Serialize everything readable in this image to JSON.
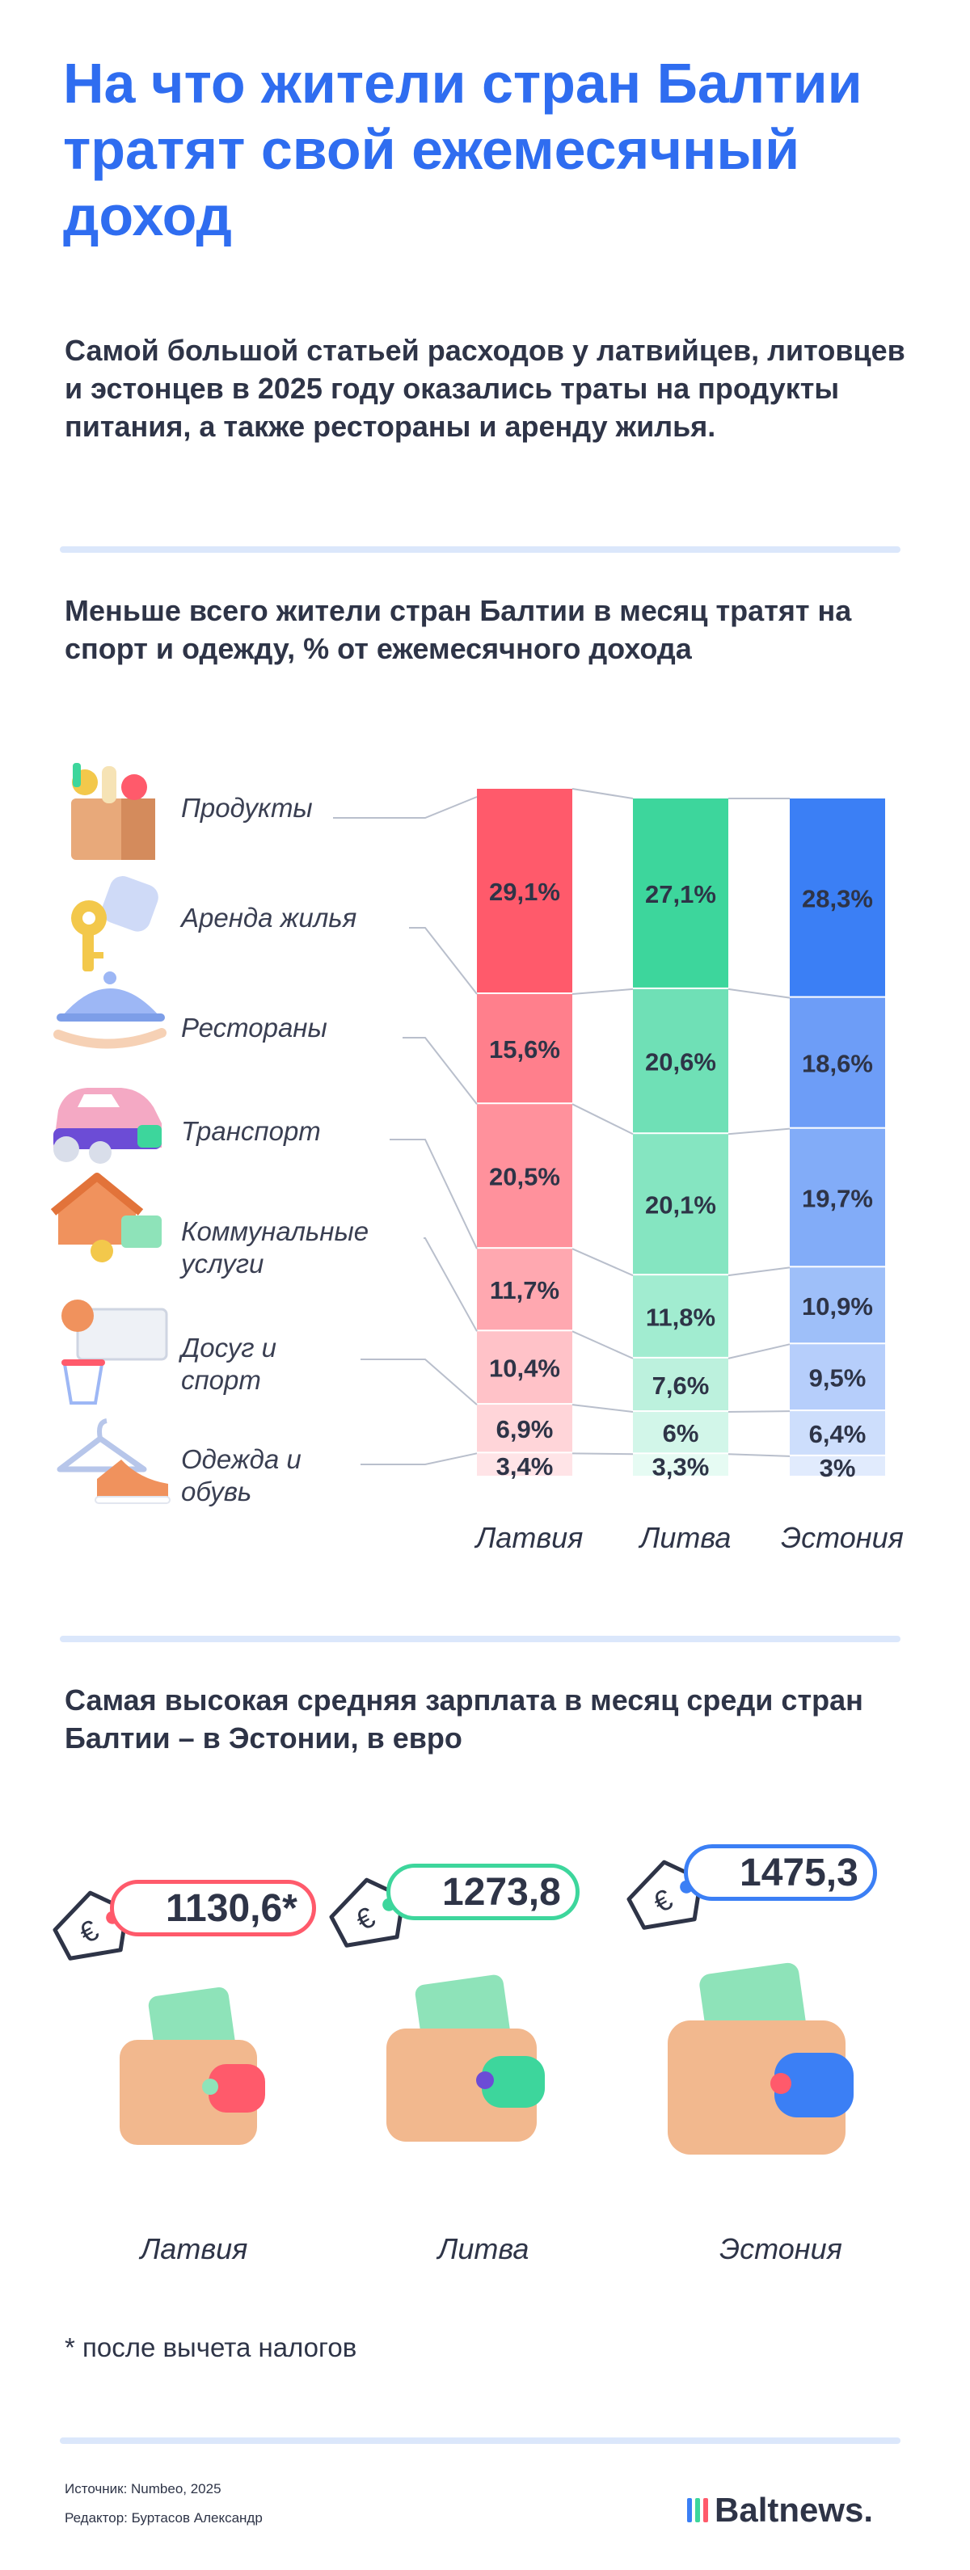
{
  "title": "На что жители стран Балтии тратят свой ежемесячный доход",
  "subtitle": "Самой большой статьей расходов у латвийцев, литовцев и эстонцев в 2025 году оказались траты на продукты питания, а также рестораны и аренду жилья.",
  "section1_title": "Меньше всего жители стран Балтии в месяц тратят на спорт и одежду, % от ежемесячного дохода",
  "section2_title": "Самая высокая средняя зарплата в месяц среди стран Балтии – в Эстонии, в евро",
  "chart_data": [
    {
      "type": "bar",
      "stacked": true,
      "title": "Меньше всего жители стран Балтии в месяц тратят на спорт и одежду, % от ежемесячного дохода",
      "categories": [
        "Латвия",
        "Литва",
        "Эстония"
      ],
      "series": [
        {
          "name": "Продукты",
          "values": [
            29.1,
            27.1,
            28.3
          ],
          "labels": [
            "29,1%",
            "27,1%",
            "28,3%"
          ]
        },
        {
          "name": "Аренда жилья",
          "values": [
            15.6,
            20.6,
            18.6
          ],
          "labels": [
            "15,6%",
            "20,6%",
            "18,6%"
          ]
        },
        {
          "name": "Рестораны",
          "values": [
            20.5,
            20.1,
            19.7
          ],
          "labels": [
            "20,5%",
            "20,1%",
            "19,7%"
          ]
        },
        {
          "name": "Транспорт",
          "values": [
            11.7,
            11.8,
            10.9
          ],
          "labels": [
            "11,7%",
            "11,8%",
            "10,9%"
          ]
        },
        {
          "name": "Коммунальные услуги",
          "values": [
            10.4,
            7.6,
            9.5
          ],
          "labels": [
            "10,4%",
            "7,6%",
            "9,5%"
          ]
        },
        {
          "name": "Досуг и спорт",
          "values": [
            6.9,
            6,
            6.4
          ],
          "labels": [
            "6,9%",
            "6%",
            "6,4%"
          ]
        },
        {
          "name": "Одежда и обувь",
          "values": [
            3.4,
            3.3,
            3
          ],
          "labels": [
            "3,4%",
            "3,3%",
            "3%"
          ]
        }
      ],
      "category_labels": [
        "Продукты",
        "Аренда жилья",
        "Рестораны",
        "Транспорт",
        "Коммунальные услуги",
        "Досуг и спорт",
        "Одежда и обувь"
      ],
      "colors": {
        "Латвия": [
          "#ff5a6b",
          "#ff7f8c",
          "#ff919c",
          "#ffa8b0",
          "#ffc2c8",
          "#ffd5d9",
          "#ffe4e7"
        ],
        "Литва": [
          "#3dd69c",
          "#6fe0b6",
          "#85e5c1",
          "#a1ecd0",
          "#bcf1dd",
          "#d2f6e9",
          "#e6fbf3"
        ],
        "Эстония": [
          "#3b7ff5",
          "#6d9df7",
          "#82acf8",
          "#9ebff9",
          "#b6cefb",
          "#cddefc",
          "#e1ebfd"
        ]
      }
    },
    {
      "type": "bar",
      "title": "Самая высокая средняя зарплата в месяц среди стран Балтии – в Эстонии, в евро",
      "categories": [
        "Латвия",
        "Литва",
        "Эстония"
      ],
      "values": [
        1130.6,
        1273.8,
        1475.3
      ],
      "labels": [
        "1130,6*",
        "1273,8",
        "1475,3"
      ],
      "colors": [
        "#ff5a6b",
        "#3dd69c",
        "#3b7ff5"
      ]
    }
  ],
  "footnote": "* после вычета налогов",
  "source": "Источник: Numbeo, 2025",
  "editor": "Редактор: Буртасов Александр",
  "logo": "Baltnews.",
  "logo_colors": [
    "#3b7ff5",
    "#3dd69c",
    "#ff5a6b"
  ]
}
